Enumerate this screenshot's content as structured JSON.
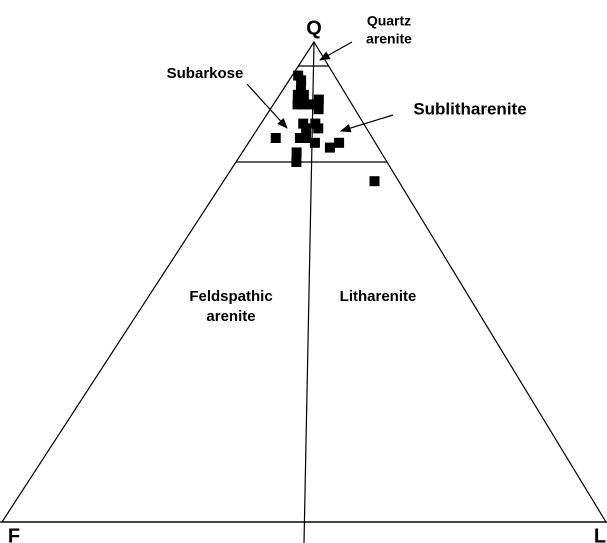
{
  "chart_data": {
    "type": "ternary",
    "apex_labels": {
      "top": "Q",
      "left": "F",
      "right": "L"
    },
    "q_boundaries": [
      95,
      75
    ],
    "fields": {
      "quartz_arenite": [
        "Quartz",
        "arenite"
      ],
      "subarkose": [
        "Subarkose"
      ],
      "sublitharenite": [
        "Sublitharenite"
      ],
      "feldspathic_arenite": [
        "Feldspathic",
        "arenite"
      ],
      "litharenite": [
        "Litharenite"
      ]
    },
    "color": "#000000",
    "points": {
      "Q": [
        93,
        92,
        90,
        89,
        89,
        87,
        87,
        88,
        87,
        86,
        83,
        83,
        82,
        82,
        80,
        80,
        79,
        80,
        78,
        79,
        77,
        75,
        71
      ],
      "F": [
        6,
        6,
        7,
        8,
        7,
        8,
        7,
        5,
        9,
        6,
        10,
        8,
        10,
        8,
        16,
        12,
        10,
        11,
        8,
        6,
        14,
        15,
        4
      ],
      "L": [
        1,
        2,
        3,
        3,
        4,
        5,
        6,
        7,
        4,
        8,
        7,
        9,
        8,
        10,
        4,
        8,
        11,
        9,
        14,
        15,
        9,
        10,
        25
      ]
    }
  }
}
